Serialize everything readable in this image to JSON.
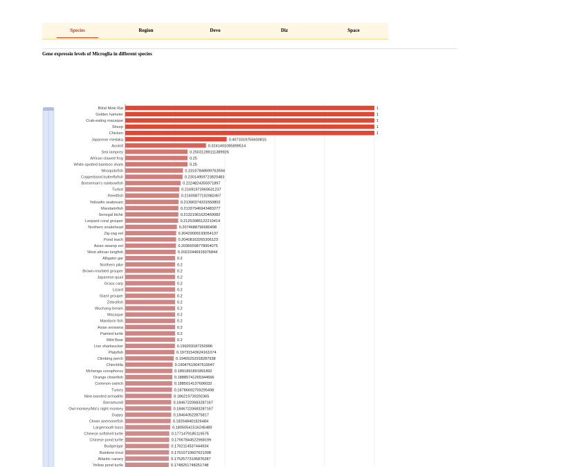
{
  "tabs": [
    {
      "label": "Species",
      "active": true
    },
    {
      "label": "Region",
      "active": false
    },
    {
      "label": "Devo",
      "active": false
    },
    {
      "label": "Diz",
      "active": false
    },
    {
      "label": "Space",
      "active": false
    }
  ],
  "title": "Gene expressio levels of Microglia in different species",
  "colors": {
    "bar_high": "#e04836",
    "bar_low": "#cc8d8d",
    "tab_active": "#c0392b",
    "tabbar_bg": "#fdf7e3",
    "slider": "#dce6f8"
  },
  "chart_data": {
    "type": "bar",
    "orientation": "horizontal",
    "xlim": [
      0,
      1.1
    ],
    "grid": true,
    "categories": [
      "Blind Mole Rat",
      "Golden hamster",
      "Crab-eating macaque",
      "Sheep",
      "Chicken",
      "Japanese medaka",
      "Axolotl",
      "Sea lamprey",
      "African clawed frog",
      "White-spotted bamboo shark",
      "Mosquitofish",
      "Copperband butterflyfish",
      "Boeseman's rainbowfish",
      "Turbot",
      "Reedfish",
      "Yellowfin seabream",
      "Mandarinfish",
      "Senegal bichir",
      "Leopard coral grouper",
      "Northern snakehead",
      "Zig-zag eel",
      "Pond loach",
      "Asian swamp eel",
      "West african lungfish",
      "Alligator gar",
      "Northern pike",
      "Brown-marbled grouper",
      "Japanese quail",
      "Grass carp",
      "Lizard",
      "Giant grouper",
      "Zebrafish",
      "Wuchang bream",
      "Macaque",
      "Mandarin fish",
      "Asian arowana",
      "Painted turtle",
      "Wild Boar",
      "Live sharksucker",
      "Platyfish",
      "Climbing perch",
      "Chinchilla",
      "Mchenga conophoros",
      "Orange clownfish",
      "Common ostrich",
      "Turkey",
      "Nine-banded armadillo",
      "Barramundi",
      "Owl monkey/Ma's night monkey",
      "Guppy",
      "Clown anemonefish",
      "Largemouth bass",
      "Chinese softshell turtle",
      "Chinese pond turtle",
      "Budgerigar",
      "Rainbow trout",
      "Atlantic canary",
      "Yellow pond turtle"
    ],
    "values": [
      1,
      1,
      1,
      1,
      1,
      0.4073319755600815,
      0.3241491085899514,
      0.25031289111389926,
      0.25,
      0.25,
      0.23167848699763594,
      0.23014959723820483,
      0.2224824355971897,
      0.21691973969631237,
      0.21600877192982457,
      0.21390374331550802,
      0.21337946943483277,
      0.21321961620469082,
      0.21253985122210414,
      0.2074688796680498,
      0.20429009193054137,
      0.20408163265306123,
      0.20366598778004075,
      0.20222446916076844,
      0.2,
      0.2,
      0.2,
      0.2,
      0.2,
      0.2,
      0.2,
      0.2,
      0.2,
      0.2,
      0.2,
      0.2,
      0.2,
      0.2,
      0.199203187250996,
      0.19731543624161074,
      0.19455252918287938,
      0.19047619047619047,
      0.1891891891891892,
      0.18885741265344666,
      0.1885014137606032,
      0.18786692759295498,
      0.186219739292365,
      0.18467220683287167,
      0.18467220683287167,
      0.184640522875817,
      0.182648401826484,
      0.18050541516245489,
      0.1771479185119575,
      0.17667844522968199,
      0.1762114537444934,
      0.17610710607621008,
      0.17525773195876287,
      0.1748251748251748
    ]
  }
}
